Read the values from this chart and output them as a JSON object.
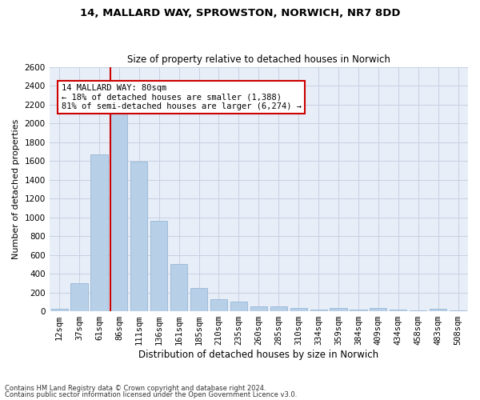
{
  "title1": "14, MALLARD WAY, SPROWSTON, NORWICH, NR7 8DD",
  "title2": "Size of property relative to detached houses in Norwich",
  "xlabel": "Distribution of detached houses by size in Norwich",
  "ylabel": "Number of detached properties",
  "categories": [
    "12sqm",
    "37sqm",
    "61sqm",
    "86sqm",
    "111sqm",
    "136sqm",
    "161sqm",
    "185sqm",
    "210sqm",
    "235sqm",
    "260sqm",
    "285sqm",
    "310sqm",
    "334sqm",
    "359sqm",
    "384sqm",
    "409sqm",
    "434sqm",
    "458sqm",
    "483sqm",
    "508sqm"
  ],
  "values": [
    25,
    300,
    1670,
    2140,
    1590,
    960,
    500,
    250,
    125,
    100,
    50,
    50,
    35,
    20,
    35,
    20,
    35,
    20,
    5,
    25,
    5
  ],
  "bar_color": "#b8cfe8",
  "bar_edge_color": "#8ab0d0",
  "vline_x_index": 3,
  "vline_color": "#cc0000",
  "annotation_text": "14 MALLARD WAY: 80sqm\n← 18% of detached houses are smaller (1,388)\n81% of semi-detached houses are larger (6,274) →",
  "annotation_box_color": "white",
  "annotation_box_edge": "#cc0000",
  "ylim": [
    0,
    2600
  ],
  "yticks": [
    0,
    200,
    400,
    600,
    800,
    1000,
    1200,
    1400,
    1600,
    1800,
    2000,
    2200,
    2400,
    2600
  ],
  "footnote1": "Contains HM Land Registry data © Crown copyright and database right 2024.",
  "footnote2": "Contains public sector information licensed under the Open Government Licence v3.0.",
  "background_color": "#e8eef8",
  "grid_color": "#c0cce0",
  "title1_fontsize": 9.5,
  "title2_fontsize": 8.5,
  "xlabel_fontsize": 8.5,
  "ylabel_fontsize": 8.0,
  "tick_fontsize": 7.5,
  "annot_fontsize": 7.5
}
